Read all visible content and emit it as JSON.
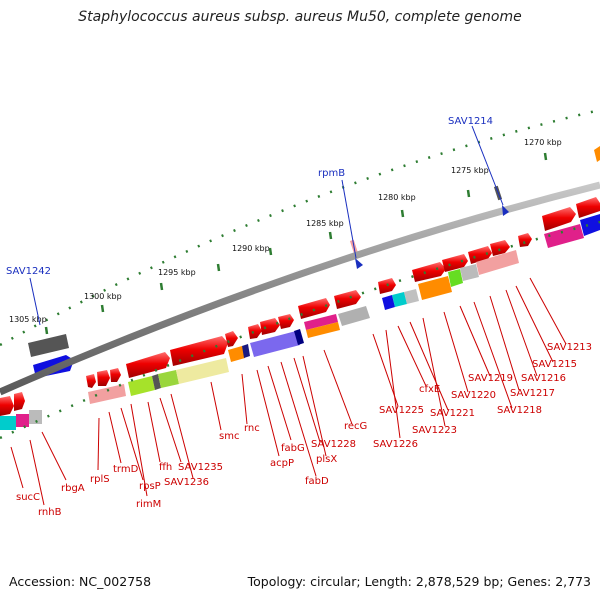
{
  "title": "Staphylococcus aureus subsp. aureus Mu50, complete genome",
  "accession": "Accession: NC_002758",
  "topology": "Topology: circular; Length: 2,878,529 bp; Genes: 2,773",
  "colors": {
    "forward_gene": "#e00000",
    "backbone": "#8a8a8a",
    "tick": "#2e7d32",
    "label_red": "#cc0000",
    "label_blue": "#1a2fbf"
  },
  "scale_labels": [
    {
      "id": "s1305",
      "text": "1305 kbp"
    },
    {
      "id": "s1300",
      "text": "1300 kbp"
    },
    {
      "id": "s1295",
      "text": "1295 kbp"
    },
    {
      "id": "s1290",
      "text": "1290 kbp"
    },
    {
      "id": "s1285",
      "text": "1285 kbp"
    },
    {
      "id": "s1280",
      "text": "1280 kbp"
    },
    {
      "id": "s1275",
      "text": "1275 kbp"
    },
    {
      "id": "s1270",
      "text": "1270 kbp"
    }
  ],
  "blue_labels": [
    {
      "id": "b1242",
      "text": "SAV1242"
    },
    {
      "id": "brpmB",
      "text": "rpmB"
    },
    {
      "id": "b1214",
      "text": "SAV1214"
    }
  ],
  "red_labels": [
    {
      "id": "sucC",
      "text": "sucC"
    },
    {
      "id": "rnhB",
      "text": "rnhB"
    },
    {
      "id": "rbgA",
      "text": "rbgA"
    },
    {
      "id": "rplS",
      "text": "rplS"
    },
    {
      "id": "trmD",
      "text": "trmD"
    },
    {
      "id": "rpsP",
      "text": "rpsP"
    },
    {
      "id": "rimM",
      "text": "rimM"
    },
    {
      "id": "ffh",
      "text": "ffh"
    },
    {
      "id": "s1235",
      "text": "SAV1235"
    },
    {
      "id": "s1236",
      "text": "SAV1236"
    },
    {
      "id": "smc",
      "text": "smc"
    },
    {
      "id": "rnc",
      "text": "rnc"
    },
    {
      "id": "fabG",
      "text": "fabG"
    },
    {
      "id": "acpP",
      "text": "acpP"
    },
    {
      "id": "fabD",
      "text": "fabD"
    },
    {
      "id": "s1228",
      "text": "SAV1228"
    },
    {
      "id": "plsX",
      "text": "plsX"
    },
    {
      "id": "recG",
      "text": "recG"
    },
    {
      "id": "s1225",
      "text": "SAV1225"
    },
    {
      "id": "s1226",
      "text": "SAV1226"
    },
    {
      "id": "cfxE",
      "text": "cfxE"
    },
    {
      "id": "s1221",
      "text": "SAV1221"
    },
    {
      "id": "s1223",
      "text": "SAV1223"
    },
    {
      "id": "s1220",
      "text": "SAV1220"
    },
    {
      "id": "s1219",
      "text": "SAV1219"
    },
    {
      "id": "s1218",
      "text": "SAV1218"
    },
    {
      "id": "s1217",
      "text": "SAV1217"
    },
    {
      "id": "s1216",
      "text": "SAV1216"
    },
    {
      "id": "s1215",
      "text": "SAV1215"
    },
    {
      "id": "s1213",
      "text": "SAV1213"
    }
  ]
}
